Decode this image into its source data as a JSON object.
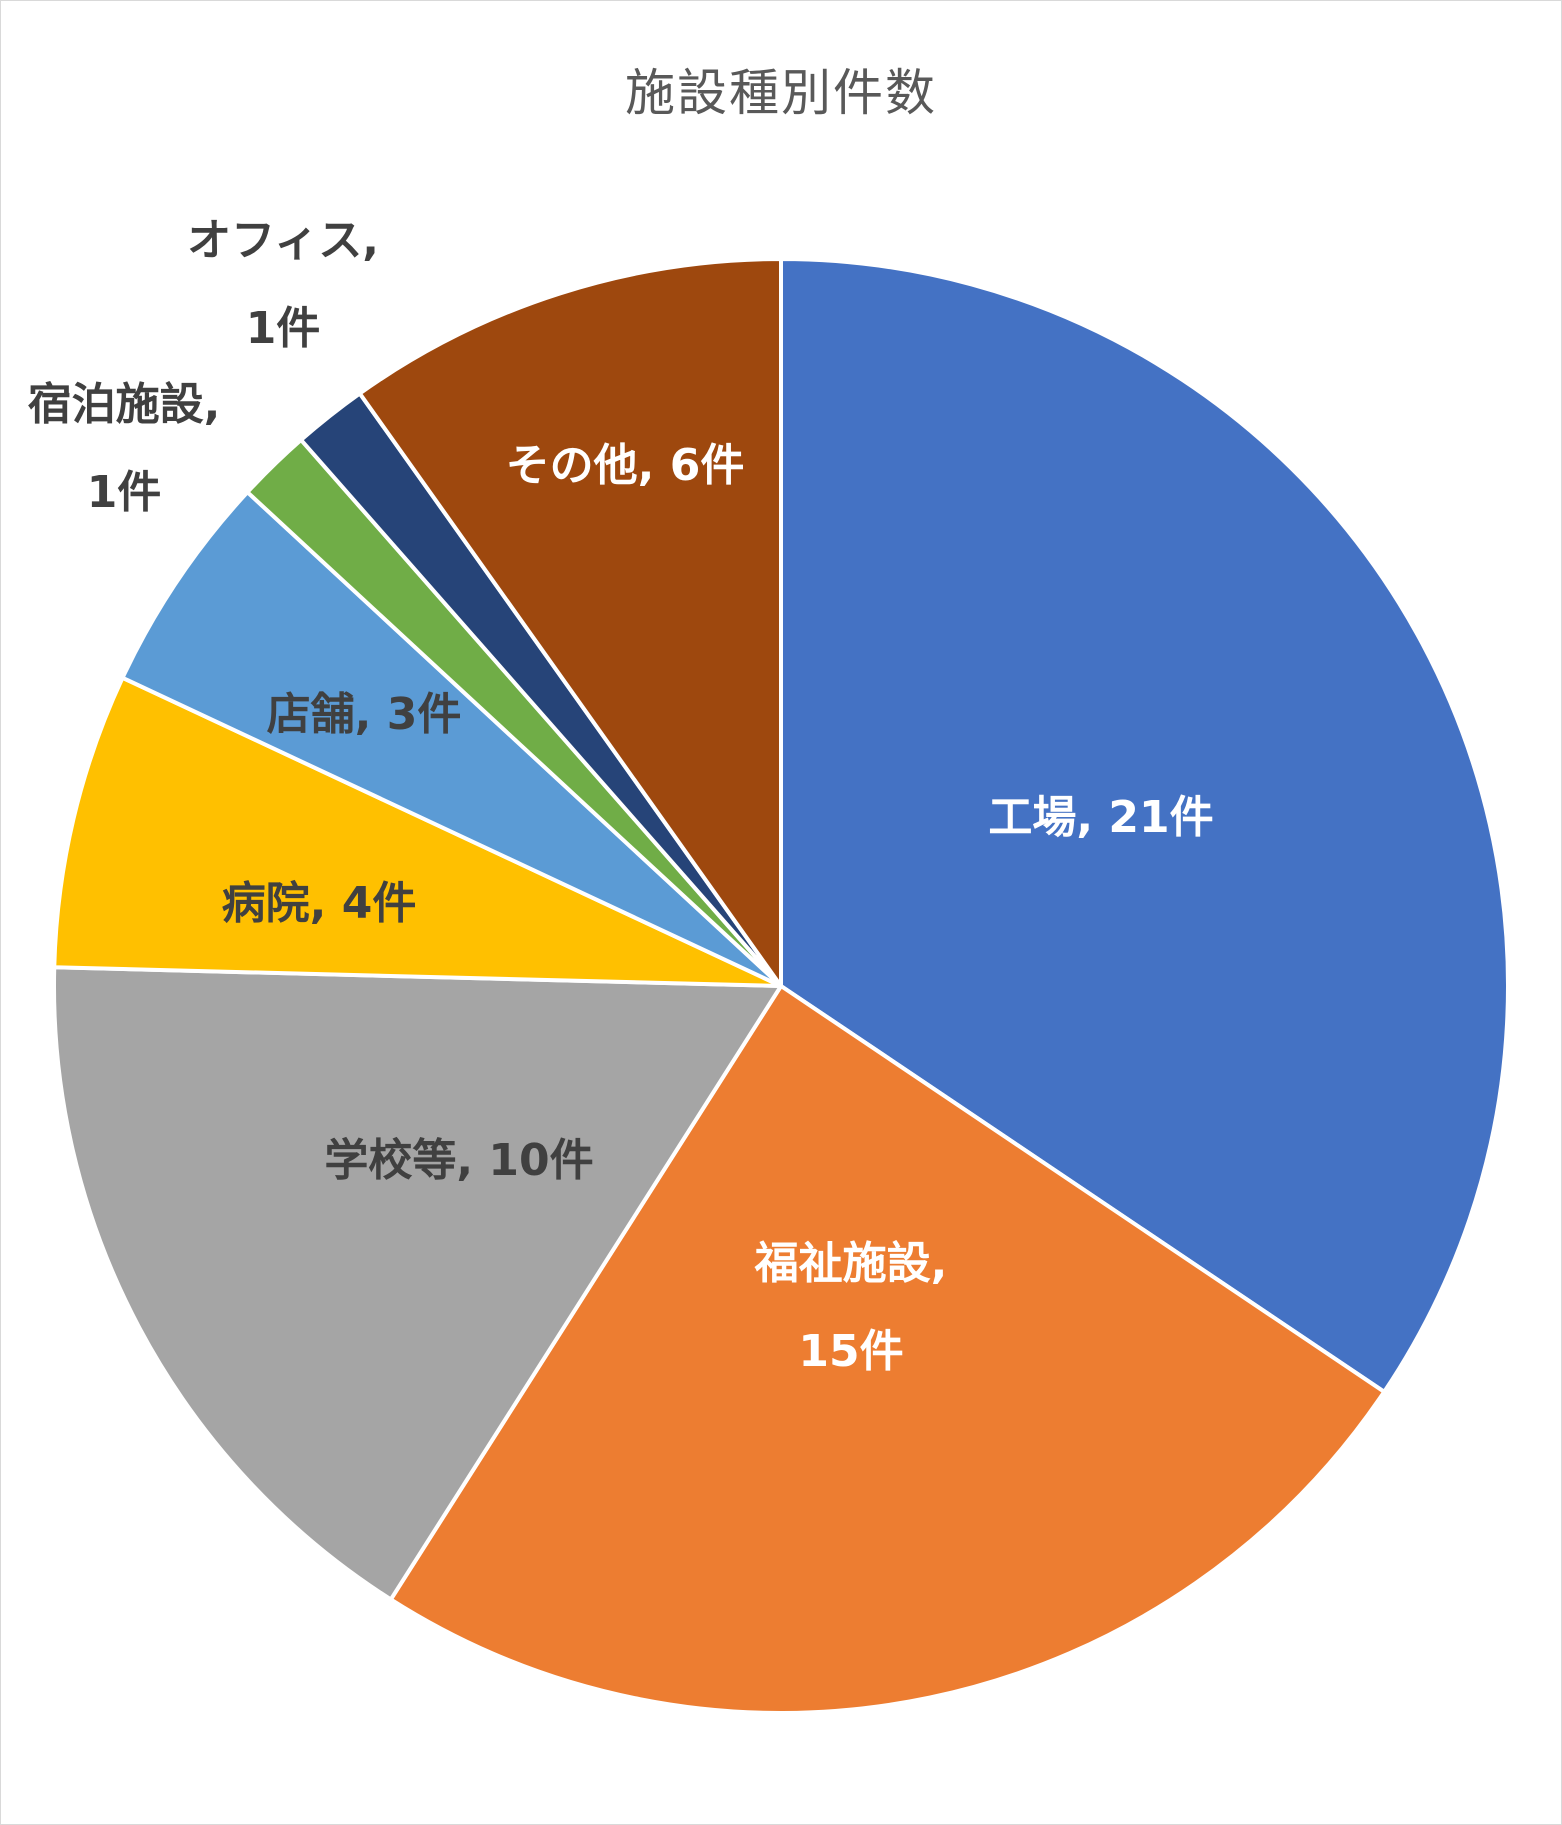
{
  "chart_data": {
    "type": "pie",
    "title": "施設種別件数",
    "categories": [
      "工場",
      "福祉施設",
      "学校等",
      "病院",
      "店舗",
      "宿泊施設",
      "オフィス",
      "その他"
    ],
    "values": [
      21,
      15,
      10,
      4,
      3,
      1,
      1,
      6
    ],
    "unit": "件",
    "colors": [
      "#4472C4",
      "#ED7D31",
      "#A5A5A5",
      "#FFC000",
      "#5B9BD5",
      "#70AD47",
      "#264478",
      "#9E480E"
    ],
    "start_angle_deg": 0,
    "direction": "clockwise",
    "slice_border_color": "#FFFFFF",
    "data_labels": [
      {
        "lines": [
          "工場, 21件"
        ],
        "color": "#FFFFFF"
      },
      {
        "lines": [
          "福祉施設,",
          "15件"
        ],
        "color": "#FFFFFF"
      },
      {
        "lines": [
          "学校等, 10件"
        ],
        "color": "#404040"
      },
      {
        "lines": [
          "病院, 4件"
        ],
        "color": "#404040"
      },
      {
        "lines": [
          "店舗, 3件"
        ],
        "color": "#404040"
      },
      {
        "lines": [
          "宿泊施設,",
          "1件"
        ],
        "color": "#404040"
      },
      {
        "lines": [
          "オフィス,",
          "1件"
        ],
        "color": "#404040"
      },
      {
        "lines": [
          "その他, 6件"
        ],
        "color": "#FFFFFF"
      }
    ],
    "legend": "none"
  }
}
